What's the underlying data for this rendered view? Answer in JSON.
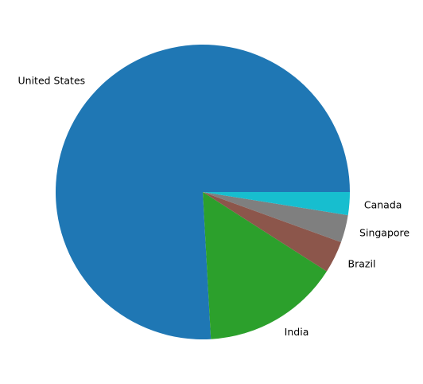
{
  "chart_data": {
    "type": "pie",
    "title": "",
    "categories": [
      "United States",
      "India",
      "Brazil",
      "Singapore",
      "Canada"
    ],
    "values": [
      75.5,
      15.0,
      3.5,
      3.0,
      2.5
    ],
    "colors": [
      "#1f77b4",
      "#2ca02c",
      "#8c564b",
      "#7f7f7f",
      "#17becf"
    ],
    "start_angle_deg": 0,
    "direction": "counterclockwise"
  }
}
